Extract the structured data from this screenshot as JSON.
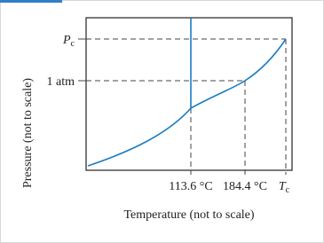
{
  "diagram": {
    "y_axis_label": "Pressure (not to scale)",
    "x_axis_label": "Temperature (not to scale)",
    "y_labels": [
      {
        "symbol": "P",
        "subscript": "c"
      },
      "1 atm"
    ],
    "x_labels": [
      "113.6 °C",
      "184.4 °C",
      {
        "symbol": "T",
        "subscript": "c"
      }
    ]
  }
}
